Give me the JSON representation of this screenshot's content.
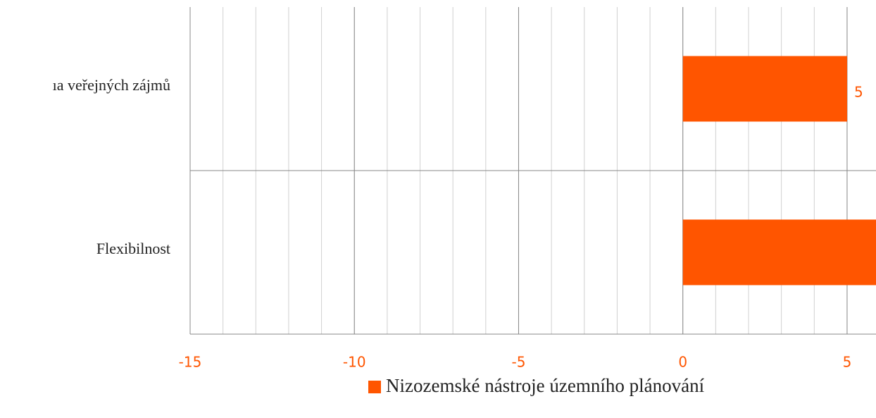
{
  "chart_data": {
    "type": "barh",
    "categories": [
      "ıa veřejných zájmů",
      "Flexibilnost"
    ],
    "series": [
      {
        "name": "Nizozemské nástroje územního plánování",
        "color": "#ff5500",
        "values": [
          5,
          6
        ],
        "value_labels": [
          "5",
          null
        ]
      }
    ],
    "xlim": [
      -15,
      5.88
    ],
    "xticks": [
      -15,
      -10,
      -5,
      0,
      5
    ],
    "xminor": 1,
    "grid": true,
    "tick_color": "#ff5500",
    "legend": "bottom"
  }
}
